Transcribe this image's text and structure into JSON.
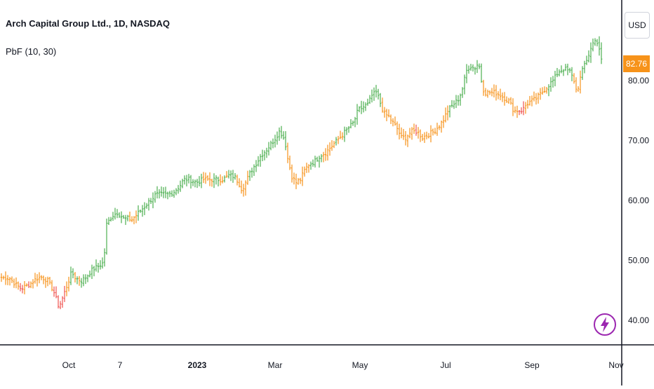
{
  "header": {
    "symbol_title": "Arch Capital Group Ltd., 1D, NASDAQ",
    "indicator": "PbF (10, 30)"
  },
  "price_scale": {
    "currency": "USD",
    "last_price": "82.76",
    "last_price_color": "#f7931a"
  },
  "icons": {
    "bolt": "lightning-bolt-icon"
  },
  "colors": {
    "up": "#4caf50",
    "neutral": "#f7931a",
    "down": "#ef5350",
    "axis": "#131722"
  },
  "chart_data": {
    "type": "ohlc",
    "title": "Arch Capital Group Ltd., 1D, NASDAQ",
    "indicator": "PbF (10, 30)",
    "ylim": [
      36,
      92
    ],
    "y_ticks": [
      "40.00",
      "50.00",
      "60.00",
      "70.00",
      "80.00"
    ],
    "x_ticks": [
      {
        "label": "Oct",
        "bold": false
      },
      {
        "label": "7",
        "bold": false
      },
      {
        "label": "2023",
        "bold": true
      },
      {
        "label": "Mar",
        "bold": false
      },
      {
        "label": "May",
        "bold": false
      },
      {
        "label": "Jul",
        "bold": false
      },
      {
        "label": "Sep",
        "bold": false
      },
      {
        "label": "Nov",
        "bold": false
      }
    ],
    "grid": false,
    "legend": "top-left",
    "series": [
      {
        "name": "price",
        "keypoints": [
          [
            0,
            47.2
          ],
          [
            14,
            47.0
          ],
          [
            22,
            46.0
          ],
          [
            30,
            45.3
          ],
          [
            42,
            46.0
          ],
          [
            52,
            47.0
          ],
          [
            60,
            47.2
          ],
          [
            68,
            46.6
          ],
          [
            76,
            45.0
          ],
          [
            84,
            42.2
          ],
          [
            90,
            44.0
          ],
          [
            96,
            46.0
          ],
          [
            102,
            48.0
          ],
          [
            108,
            47.0
          ],
          [
            116,
            46.6
          ],
          [
            124,
            47.4
          ],
          [
            132,
            48.5
          ],
          [
            140,
            49.0
          ],
          [
            146,
            49.5
          ],
          [
            150,
            52.0
          ],
          [
            152,
            56.0
          ],
          [
            160,
            57.5
          ],
          [
            168,
            58.0
          ],
          [
            176,
            57.0
          ],
          [
            182,
            57.0
          ],
          [
            188,
            56.8
          ],
          [
            196,
            57.8
          ],
          [
            206,
            59.0
          ],
          [
            214,
            60.0
          ],
          [
            222,
            61.0
          ],
          [
            230,
            61.0
          ],
          [
            240,
            61.0
          ],
          [
            248,
            61.5
          ],
          [
            256,
            62.4
          ],
          [
            262,
            63.5
          ],
          [
            270,
            63.5
          ],
          [
            280,
            63.0
          ],
          [
            290,
            63.5
          ],
          [
            300,
            63.5
          ],
          [
            310,
            63.5
          ],
          [
            318,
            63.5
          ],
          [
            326,
            64.2
          ],
          [
            334,
            64.0
          ],
          [
            340,
            63.0
          ],
          [
            344,
            62.0
          ],
          [
            348,
            62.5
          ],
          [
            352,
            63.5
          ],
          [
            358,
            65.0
          ],
          [
            364,
            66.0
          ],
          [
            372,
            67.5
          ],
          [
            380,
            68.5
          ],
          [
            390,
            70.0
          ],
          [
            398,
            71.5
          ],
          [
            402,
            71.0
          ],
          [
            406,
            70.0
          ],
          [
            410,
            67.0
          ],
          [
            416,
            64.0
          ],
          [
            422,
            63.0
          ],
          [
            428,
            63.5
          ],
          [
            434,
            65.0
          ],
          [
            440,
            66.0
          ],
          [
            448,
            66.5
          ],
          [
            456,
            67.5
          ],
          [
            464,
            68.0
          ],
          [
            472,
            69.0
          ],
          [
            480,
            70.0
          ],
          [
            488,
            71.0
          ],
          [
            496,
            72.0
          ],
          [
            504,
            73.0
          ],
          [
            510,
            75.0
          ],
          [
            516,
            75.5
          ],
          [
            524,
            76.0
          ],
          [
            530,
            77.5
          ],
          [
            536,
            78.0
          ],
          [
            540,
            77.0
          ],
          [
            544,
            75.5
          ],
          [
            548,
            74.5
          ],
          [
            554,
            74.0
          ],
          [
            560,
            73.0
          ],
          [
            566,
            72.0
          ],
          [
            572,
            70.5
          ],
          [
            578,
            70.5
          ],
          [
            586,
            71.5
          ],
          [
            594,
            71.5
          ],
          [
            602,
            70.5
          ],
          [
            610,
            71.0
          ],
          [
            618,
            71.5
          ],
          [
            626,
            72.5
          ],
          [
            632,
            73.5
          ],
          [
            638,
            75.0
          ],
          [
            646,
            76.0
          ],
          [
            654,
            77.0
          ],
          [
            660,
            79.0
          ],
          [
            664,
            81.5
          ],
          [
            670,
            82.5
          ],
          [
            676,
            82.0
          ],
          [
            682,
            83.0
          ],
          [
            686,
            80.0
          ],
          [
            690,
            78.0
          ],
          [
            698,
            78.0
          ],
          [
            706,
            78.0
          ],
          [
            714,
            77.5
          ],
          [
            720,
            77.0
          ],
          [
            726,
            76.5
          ],
          [
            732,
            75.0
          ],
          [
            738,
            75.0
          ],
          [
            744,
            75.0
          ],
          [
            750,
            76.0
          ],
          [
            756,
            76.5
          ],
          [
            764,
            77.0
          ],
          [
            772,
            78.0
          ],
          [
            780,
            79.0
          ],
          [
            788,
            80.0
          ],
          [
            796,
            81.5
          ],
          [
            804,
            82.0
          ],
          [
            812,
            81.5
          ],
          [
            818,
            80.0
          ],
          [
            822,
            78.0
          ],
          [
            826,
            80.0
          ],
          [
            832,
            82.5
          ],
          [
            838,
            84.0
          ],
          [
            844,
            86.0
          ],
          [
            848,
            87.0
          ],
          [
            852,
            86.0
          ],
          [
            856,
            84.0
          ],
          [
            858,
            82.8
          ]
        ]
      }
    ],
    "last_value": 82.76
  }
}
